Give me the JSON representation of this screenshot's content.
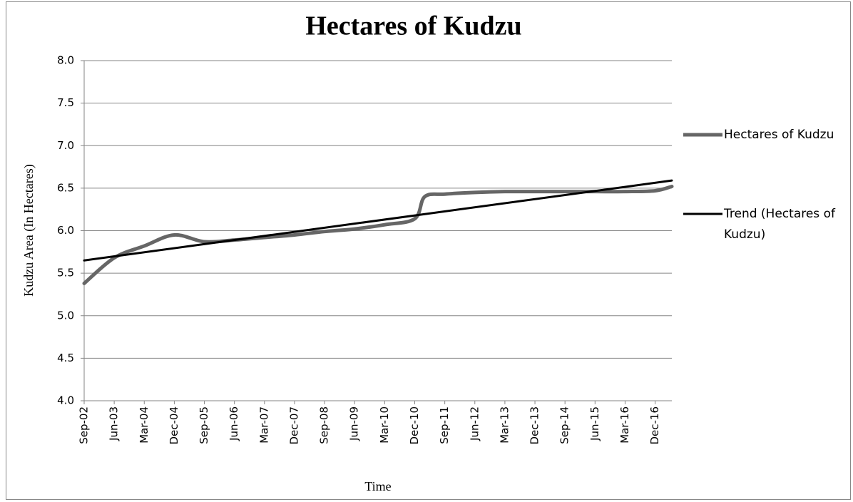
{
  "chart_data": {
    "type": "line",
    "title": "Hectares of Kudzu",
    "x_label": "Time",
    "y_label": "Kudzu Area (In Hectares)",
    "ylim": [
      4.0,
      8.0
    ],
    "yticks": [
      {
        "value": 4.0,
        "label": "4.0"
      },
      {
        "value": 4.5,
        "label": "4.5"
      },
      {
        "value": 5.0,
        "label": "5.0"
      },
      {
        "value": 5.5,
        "label": "5.5"
      },
      {
        "value": 6.0,
        "label": "6.0"
      },
      {
        "value": 6.5,
        "label": "6.5"
      },
      {
        "value": 7.0,
        "label": "7.0"
      },
      {
        "value": 7.5,
        "label": "7.5"
      },
      {
        "value": 8.0,
        "label": "8.0"
      }
    ],
    "xlim": [
      "2002-09",
      "2017-05"
    ],
    "xticks": [
      {
        "value": "2002-09",
        "label": "Sep-02"
      },
      {
        "value": "2003-06",
        "label": "Jun-03"
      },
      {
        "value": "2004-03",
        "label": "Mar-04"
      },
      {
        "value": "2004-12",
        "label": "Dec-04"
      },
      {
        "value": "2005-09",
        "label": "Sep-05"
      },
      {
        "value": "2006-06",
        "label": "Jun-06"
      },
      {
        "value": "2007-03",
        "label": "Mar-07"
      },
      {
        "value": "2007-12",
        "label": "Dec-07"
      },
      {
        "value": "2008-09",
        "label": "Sep-08"
      },
      {
        "value": "2009-06",
        "label": "Jun-09"
      },
      {
        "value": "2010-03",
        "label": "Mar-10"
      },
      {
        "value": "2010-12",
        "label": "Dec-10"
      },
      {
        "value": "2011-09",
        "label": "Sep-11"
      },
      {
        "value": "2012-06",
        "label": "Jun-12"
      },
      {
        "value": "2013-03",
        "label": "Mar-13"
      },
      {
        "value": "2013-12",
        "label": "Dec-13"
      },
      {
        "value": "2014-09",
        "label": "Sep-14"
      },
      {
        "value": "2015-06",
        "label": "Jun-15"
      },
      {
        "value": "2016-03",
        "label": "Mar-16"
      },
      {
        "value": "2016-12",
        "label": "Dec-16"
      }
    ],
    "grid": true,
    "legend": "right",
    "series": [
      {
        "name": "Hectares of Kudzu",
        "color": "#666666",
        "x": [
          "2002-09",
          "2003-06",
          "2004-03",
          "2004-12",
          "2005-09",
          "2006-06",
          "2007-03",
          "2007-12",
          "2008-09",
          "2009-06",
          "2010-03",
          "2010-12",
          "2011-03",
          "2011-09",
          "2012-06",
          "2013-03",
          "2013-12",
          "2014-09",
          "2015-06",
          "2016-03",
          "2016-12",
          "2017-05"
        ],
        "values": [
          5.38,
          5.68,
          5.82,
          5.95,
          5.87,
          5.89,
          5.92,
          5.95,
          5.99,
          6.02,
          6.07,
          6.14,
          6.4,
          6.43,
          6.45,
          6.46,
          6.46,
          6.46,
          6.46,
          6.46,
          6.47,
          6.52
        ]
      },
      {
        "name": "Trend (Hectares of Kudzu)",
        "color": "#000000",
        "x": [
          "2002-09",
          "2017-05"
        ],
        "values": [
          5.65,
          6.59
        ]
      }
    ]
  }
}
